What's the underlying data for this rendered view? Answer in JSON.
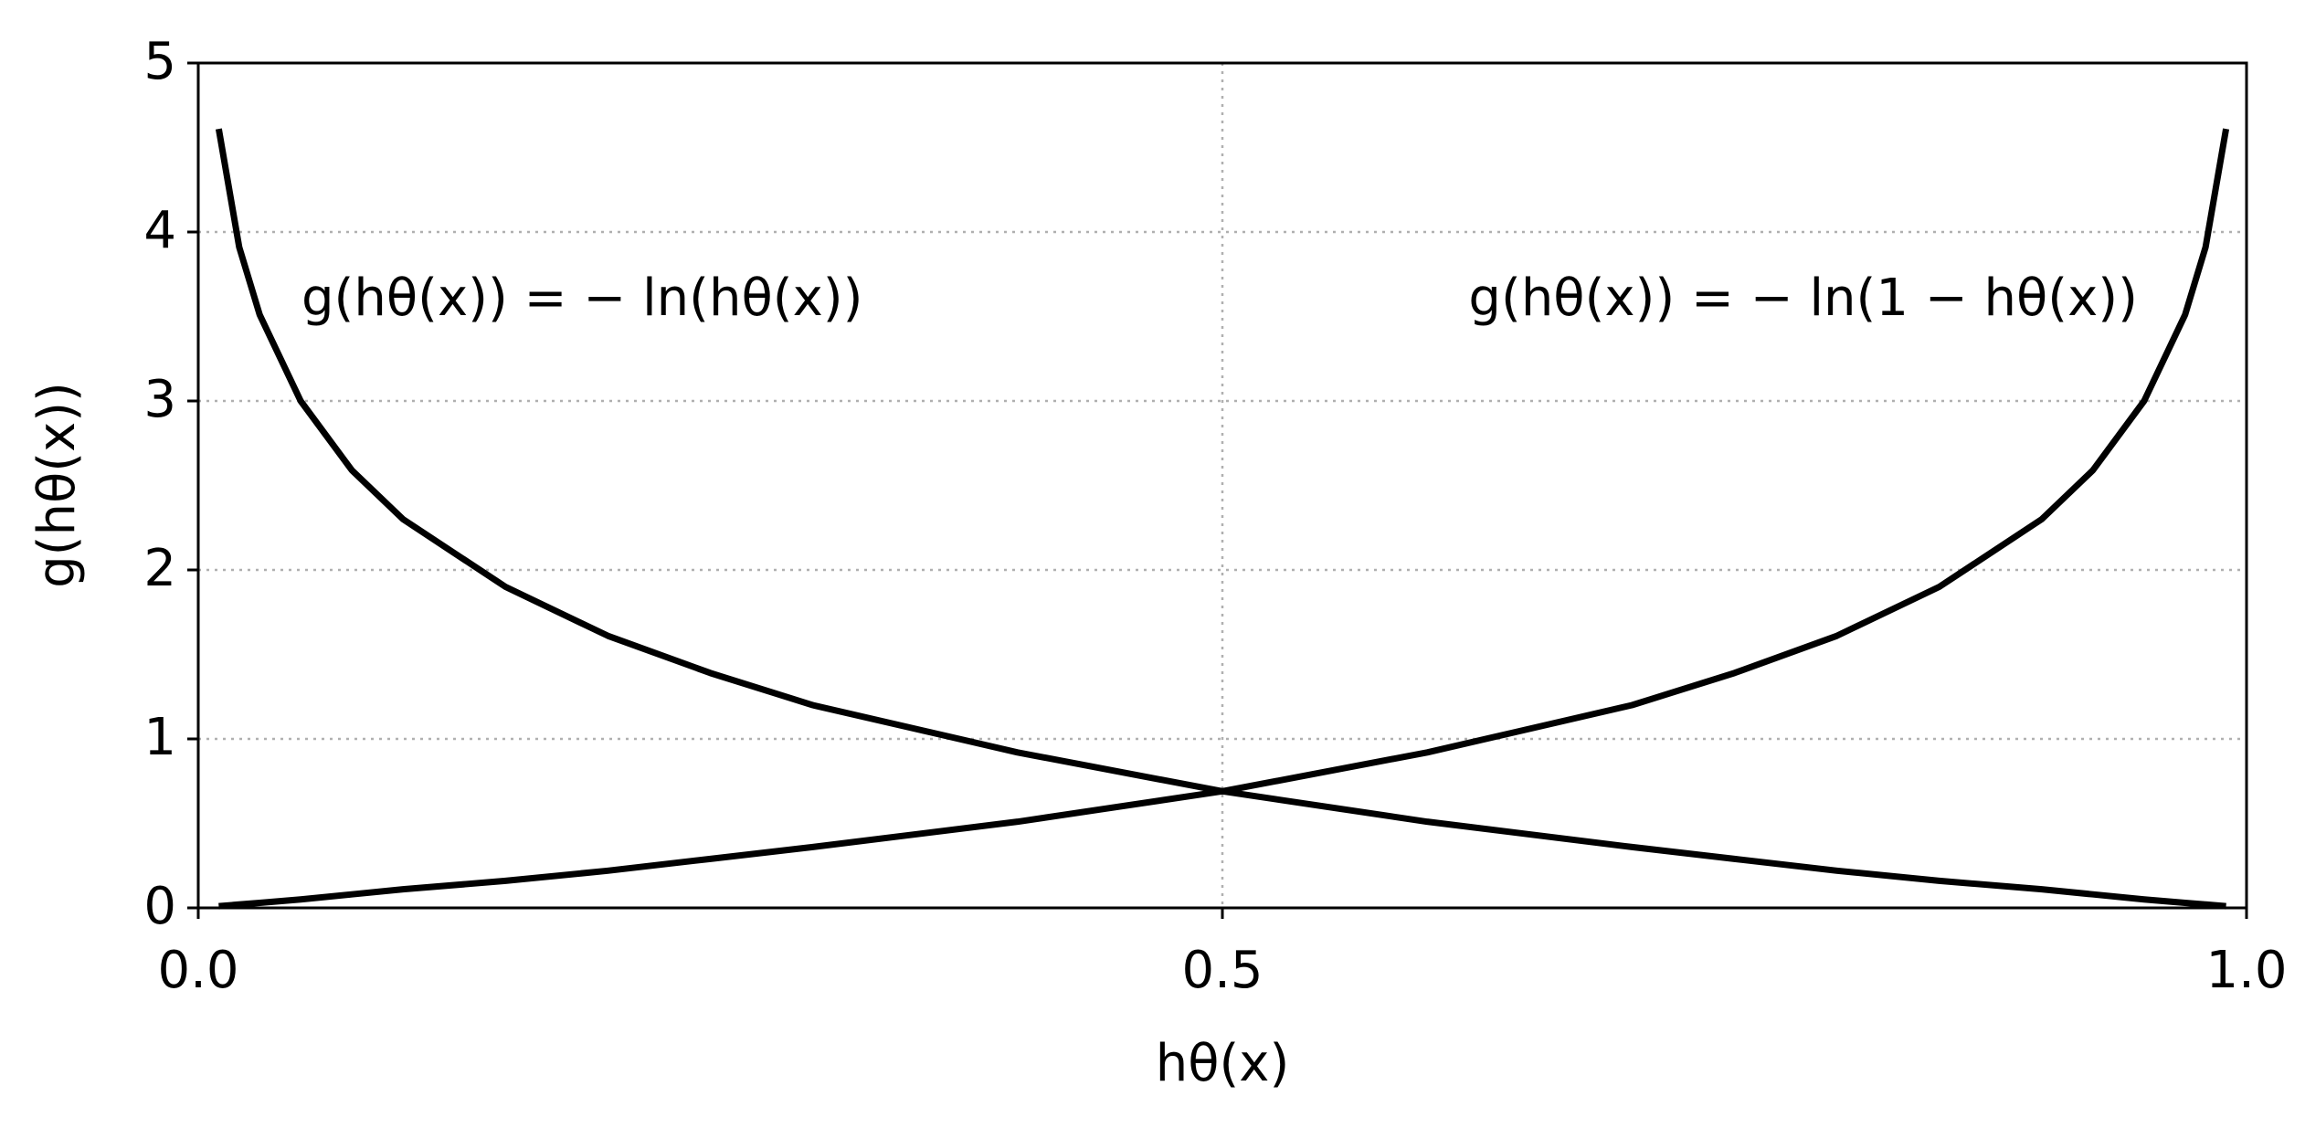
{
  "chart_data": {
    "type": "line",
    "xlabel": "hθ(x)",
    "ylabel": "g(hθ(x))",
    "annotations": [
      "g(hθ(x)) = − ln(hθ(x))",
      "g(hθ(x)) = − ln(1 − hθ(x))"
    ],
    "x": [
      0.01,
      0.02,
      0.03,
      0.05,
      0.075,
      0.1,
      0.15,
      0.2,
      0.25,
      0.3,
      0.4,
      0.5,
      0.6,
      0.7,
      0.75,
      0.8,
      0.85,
      0.9,
      0.925,
      0.95,
      0.97,
      0.98,
      0.99
    ],
    "series": [
      {
        "color": "#000000",
        "values": [
          4.61,
          3.91,
          3.51,
          3.0,
          2.59,
          2.3,
          1.9,
          1.61,
          1.39,
          1.2,
          0.92,
          0.69,
          0.51,
          0.36,
          0.29,
          0.22,
          0.16,
          0.11,
          0.08,
          0.05,
          0.03,
          0.02,
          0.01
        ]
      },
      {
        "color": "#000000",
        "values": [
          0.01,
          0.02,
          0.03,
          0.05,
          0.08,
          0.11,
          0.16,
          0.22,
          0.29,
          0.36,
          0.51,
          0.69,
          0.92,
          1.2,
          1.39,
          1.61,
          1.9,
          2.3,
          2.59,
          3.0,
          3.51,
          3.91,
          4.61
        ]
      }
    ],
    "xlim": [
      0,
      1
    ],
    "xticks": [
      {
        "value": 0,
        "label": "0.0"
      },
      0.5,
      {
        "value": 1,
        "label": "1.0"
      }
    ],
    "ylim": [
      0,
      5
    ],
    "yticks": [
      0,
      1,
      2,
      3,
      4,
      5
    ],
    "grid": true
  }
}
